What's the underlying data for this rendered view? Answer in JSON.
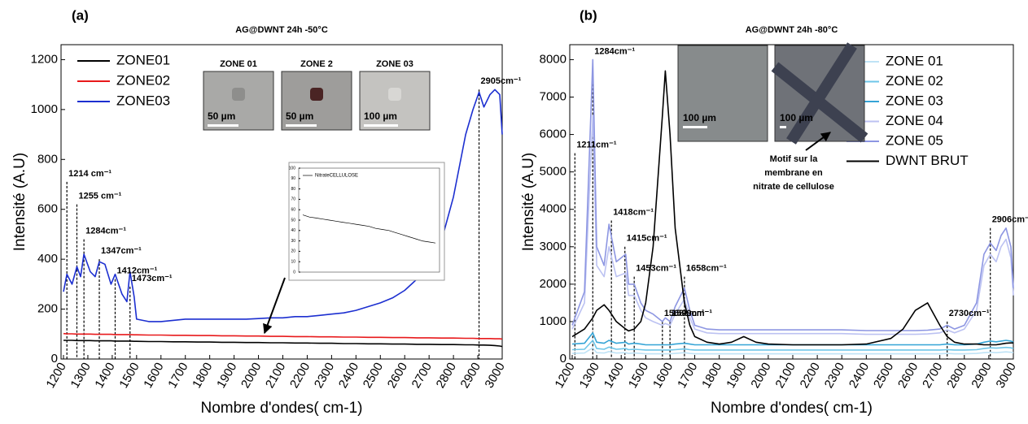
{
  "chart_data": [
    {
      "type": "line",
      "panel": "(a)",
      "title": "AG@DWNT 24h -50°C",
      "x_label": "Nombre d'ondes( cm-1)",
      "y_label": "Intensité (A.U)",
      "xlim": [
        1190,
        3000
      ],
      "ylim": [
        0,
        1260
      ],
      "xticks": [
        1200,
        1300,
        1400,
        1500,
        1600,
        1700,
        1800,
        1900,
        2000,
        2100,
        2200,
        2300,
        2400,
        2500,
        2600,
        2700,
        2800,
        2900,
        3000
      ],
      "yticks": [
        0,
        200,
        400,
        600,
        800,
        1000,
        1200
      ],
      "x": [
        1200,
        1214,
        1235,
        1255,
        1270,
        1284,
        1310,
        1330,
        1347,
        1370,
        1395,
        1412,
        1440,
        1460,
        1473,
        1490,
        1500,
        1550,
        1600,
        1650,
        1700,
        1750,
        1800,
        1850,
        1900,
        1950,
        2000,
        2050,
        2100,
        2150,
        2200,
        2250,
        2300,
        2350,
        2400,
        2450,
        2500,
        2550,
        2600,
        2650,
        2700,
        2750,
        2800,
        2850,
        2880,
        2905,
        2925,
        2950,
        2970,
        2990,
        3000
      ],
      "series": [
        {
          "name": "ZONE01",
          "color": "#000000",
          "values": [
            75,
            75,
            75,
            74,
            74,
            74,
            74,
            73,
            73,
            73,
            73,
            72,
            72,
            72,
            72,
            71,
            71,
            70,
            70,
            69,
            69,
            68,
            68,
            67,
            67,
            66,
            66,
            65,
            65,
            64,
            64,
            63,
            63,
            62,
            62,
            61,
            61,
            60,
            60,
            59,
            59,
            58,
            58,
            57,
            57,
            56,
            56,
            55,
            54,
            52,
            50
          ]
        },
        {
          "name": "ZONE02",
          "color": "#e8191b",
          "values": [
            102,
            101,
            101,
            100,
            100,
            100,
            100,
            99,
            99,
            99,
            99,
            98,
            98,
            98,
            98,
            97,
            97,
            96,
            96,
            95,
            95,
            94,
            94,
            93,
            93,
            92,
            92,
            91,
            91,
            90,
            90,
            89,
            89,
            88,
            88,
            87,
            87,
            86,
            86,
            85,
            85,
            84,
            84,
            83,
            83,
            82,
            82,
            82,
            81,
            81,
            80
          ]
        },
        {
          "name": "ZONE03",
          "color": "#1c2fd0",
          "values": [
            270,
            340,
            300,
            370,
            330,
            420,
            350,
            330,
            390,
            380,
            300,
            340,
            260,
            230,
            350,
            250,
            160,
            150,
            150,
            155,
            160,
            160,
            160,
            160,
            160,
            160,
            162,
            165,
            165,
            170,
            170,
            175,
            180,
            185,
            195,
            210,
            225,
            245,
            275,
            320,
            380,
            470,
            650,
            900,
            1000,
            1070,
            1010,
            1060,
            1080,
            1060,
            900
          ]
        }
      ],
      "annotations": [
        {
          "text": "1214 cm⁻¹",
          "x": 1214,
          "y": 710
        },
        {
          "text": "1255 cm⁻¹",
          "x": 1255,
          "y": 620
        },
        {
          "text": "1284cm⁻¹",
          "x": 1284,
          "y": 480
        },
        {
          "text": "1347cm⁻¹",
          "x": 1347,
          "y": 400
        },
        {
          "text": "1412cm⁻¹",
          "x": 1412,
          "y": 320
        },
        {
          "text": "1473cm⁻¹",
          "x": 1473,
          "y": 290
        },
        {
          "text": "2905cm⁻¹",
          "x": 2905,
          "y": 1080
        }
      ],
      "images": [
        {
          "label": "ZONE 01",
          "scale": "50 µm"
        },
        {
          "label": "ZONE 2",
          "scale": "50 µm"
        },
        {
          "label": "ZONE 03",
          "scale": "100 µm"
        }
      ]
    },
    {
      "type": "line",
      "panel": "(b)",
      "title": "AG@DWNT 24h -80°C",
      "x_label": "Nombre d'ondes( cm-1)",
      "y_label": "Intensité (A.U)",
      "xlim": [
        1190,
        3000
      ],
      "ylim": [
        0,
        8400
      ],
      "xticks": [
        1200,
        1300,
        1400,
        1500,
        1600,
        1700,
        1800,
        1900,
        2000,
        2100,
        2200,
        2300,
        2400,
        2500,
        2600,
        2700,
        2800,
        2900,
        3000
      ],
      "yticks": [
        0,
        1000,
        2000,
        3000,
        4000,
        5000,
        6000,
        7000,
        8000
      ],
      "x": [
        1200,
        1250,
        1284,
        1300,
        1330,
        1350,
        1380,
        1418,
        1430,
        1453,
        1480,
        1500,
        1530,
        1568,
        1580,
        1599,
        1620,
        1658,
        1680,
        1700,
        1750,
        1800,
        1850,
        1900,
        1950,
        2000,
        2100,
        2200,
        2300,
        2400,
        2500,
        2550,
        2600,
        2650,
        2700,
        2730,
        2760,
        2800,
        2850,
        2880,
        2906,
        2930,
        2950,
        2970,
        2990,
        3000
      ],
      "series": [
        {
          "name": "ZONE 01",
          "color": "#bfe3f6",
          "values": [
            150,
            160,
            300,
            170,
            160,
            200,
            160,
            170,
            150,
            160,
            150,
            140,
            140,
            140,
            140,
            140,
            150,
            170,
            150,
            140,
            140,
            140,
            140,
            140,
            140,
            140,
            140,
            140,
            140,
            140,
            140,
            140,
            140,
            140,
            140,
            150,
            140,
            140,
            150,
            170,
            180,
            170,
            180,
            190,
            180,
            170
          ]
        },
        {
          "name": "ZONE 02",
          "color": "#6ec6e8",
          "values": [
            250,
            260,
            500,
            280,
            260,
            320,
            260,
            280,
            250,
            260,
            250,
            240,
            240,
            240,
            240,
            240,
            250,
            270,
            250,
            240,
            240,
            240,
            240,
            240,
            240,
            240,
            240,
            240,
            240,
            240,
            240,
            240,
            240,
            240,
            240,
            250,
            240,
            240,
            250,
            280,
            300,
            290,
            300,
            310,
            300,
            280
          ]
        },
        {
          "name": "ZONE 03",
          "color": "#35a4d6",
          "values": [
            400,
            420,
            700,
            450,
            420,
            500,
            420,
            450,
            400,
            420,
            400,
            380,
            380,
            380,
            380,
            380,
            400,
            420,
            400,
            380,
            380,
            380,
            380,
            380,
            380,
            380,
            380,
            380,
            380,
            380,
            380,
            380,
            380,
            380,
            380,
            400,
            380,
            380,
            400,
            450,
            480,
            460,
            480,
            500,
            480,
            450
          ]
        },
        {
          "name": "ZONE 04",
          "color": "#bcc2f2",
          "values": [
            800,
            1500,
            6500,
            2500,
            2200,
            3000,
            2200,
            2300,
            1700,
            1700,
            1300,
            1100,
            1000,
            900,
            950,
            900,
            1200,
            1600,
            1100,
            800,
            700,
            680,
            680,
            680,
            680,
            680,
            680,
            680,
            680,
            660,
            660,
            660,
            660,
            670,
            700,
            780,
            700,
            800,
            1300,
            2500,
            2800,
            2600,
            3000,
            3200,
            2700,
            1700
          ]
        },
        {
          "name": "ZONE 05",
          "color": "#8d96e2",
          "values": [
            900,
            1800,
            8000,
            3000,
            2500,
            3600,
            2600,
            2800,
            2000,
            2000,
            1500,
            1300,
            1200,
            1000,
            1100,
            1000,
            1400,
            1900,
            1300,
            900,
            800,
            780,
            780,
            780,
            780,
            780,
            780,
            780,
            780,
            760,
            760,
            760,
            760,
            770,
            800,
            900,
            800,
            900,
            1500,
            2800,
            3100,
            2900,
            3300,
            3500,
            3000,
            1900
          ]
        },
        {
          "name": "DWNT BRUT",
          "color": "#000000",
          "values": [
            600,
            800,
            1100,
            1300,
            1450,
            1300,
            1000,
            800,
            750,
            800,
            1000,
            1500,
            3000,
            6500,
            7700,
            6000,
            3500,
            1500,
            900,
            600,
            450,
            400,
            450,
            600,
            450,
            400,
            380,
            380,
            380,
            400,
            550,
            800,
            1300,
            1500,
            900,
            600,
            450,
            400,
            400,
            380,
            380,
            380,
            400,
            420,
            430,
            430
          ]
        }
      ],
      "annotations": [
        {
          "text": "1284cm⁻¹",
          "x": 1284,
          "y": 8000
        },
        {
          "text": "1211cm⁻¹",
          "x": 1211,
          "y": 5500
        },
        {
          "text": "1418cm⁻¹",
          "x": 1360,
          "y": 3700
        },
        {
          "text": "1415cm⁻¹",
          "x": 1415,
          "y": 3000
        },
        {
          "text": "1453cm⁻¹",
          "x": 1453,
          "y": 2200
        },
        {
          "text": "1658cm⁻¹",
          "x": 1658,
          "y": 2200
        },
        {
          "text": "1568cm⁻¹",
          "x": 1568,
          "y": 1000
        },
        {
          "text": "1599cm⁻¹",
          "x": 1599,
          "y": 1000
        },
        {
          "text": "2730cm⁻¹",
          "x": 2730,
          "y": 1000
        },
        {
          "text": "2906cm⁻¹",
          "x": 2906,
          "y": 3500
        }
      ],
      "images": [
        {
          "scale": "100 µm"
        },
        {
          "scale": "100 µm"
        }
      ],
      "note_lines": [
        "Motif sur la",
        "membrane en",
        "nitrate de cellulose"
      ]
    },
    {
      "type": "line",
      "ylim": [
        0,
        100
      ],
      "yticks": [
        0,
        10,
        20,
        30,
        40,
        50,
        60,
        70,
        80,
        90,
        100
      ],
      "series": [
        {
          "name": "NitrateCELLULOSE",
          "color": "#000000",
          "values": [
            55,
            53,
            52,
            51,
            50,
            49,
            48,
            47,
            46,
            45,
            44,
            42,
            41,
            40,
            38,
            36,
            34,
            32,
            30,
            29,
            28
          ]
        }
      ]
    }
  ]
}
